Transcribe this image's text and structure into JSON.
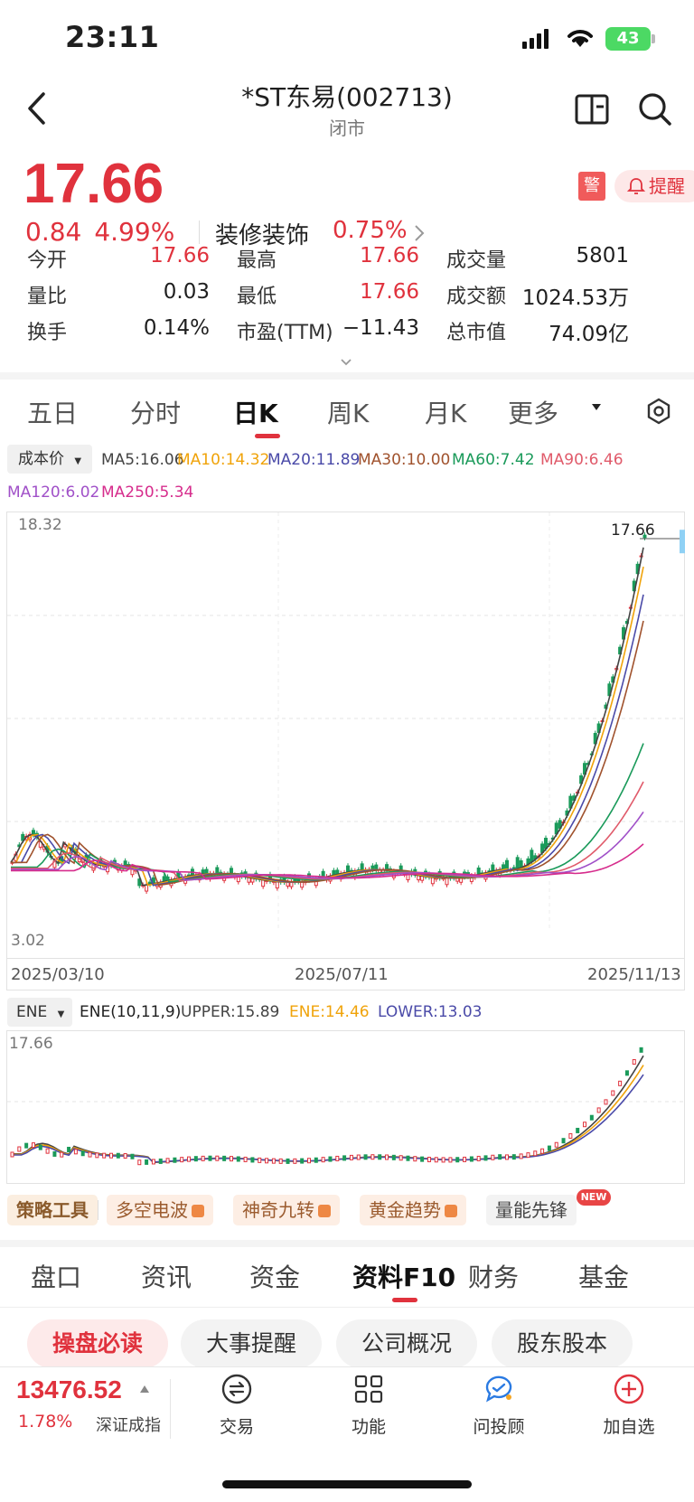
{
  "status_bar": {
    "time": "23:11",
    "battery": "43"
  },
  "header": {
    "title": "*ST东易(002713)",
    "subtitle": "闭市",
    "back_icon": "chevron-left-icon",
    "book_icon": "book-icon",
    "search_icon": "search-icon"
  },
  "quote": {
    "price": "17.66",
    "change": "0.84",
    "change_pct": "4.99%",
    "sector": "装修装饰",
    "sector_pct": "0.75%",
    "warn_label": "警",
    "remind_label": "提醒",
    "stats": [
      [
        {
          "label": "今开",
          "value": "17.66",
          "red": true
        },
        {
          "label": "最高",
          "value": "17.66",
          "red": true
        },
        {
          "label": "成交量",
          "value": "5801",
          "red": false
        }
      ],
      [
        {
          "label": "量比",
          "value": "0.03",
          "red": false
        },
        {
          "label": "最低",
          "value": "17.66",
          "red": true
        },
        {
          "label": "成交额",
          "value": "1024.53万",
          "red": false
        }
      ],
      [
        {
          "label": "换手",
          "value": "0.14%",
          "red": false
        },
        {
          "label": "市盈(TTM)",
          "value": "−11.43",
          "red": false
        },
        {
          "label": "总市值",
          "value": "74.09亿",
          "red": false
        }
      ]
    ]
  },
  "chart_tabs": [
    "五日",
    "分时",
    "日K",
    "周K",
    "月K",
    "更多"
  ],
  "active_chart_tab": "日K",
  "ma_legend": {
    "cost_label": "成本价",
    "row1": [
      {
        "text": "MA5:16.06",
        "color": "#444444"
      },
      {
        "text": "MA10:14.32",
        "color": "#f0a30a"
      },
      {
        "text": "MA20:11.89",
        "color": "#4a4aa8"
      },
      {
        "text": "MA30:10.00",
        "color": "#a0522d"
      },
      {
        "text": "MA60:7.42",
        "color": "#1a9a5a"
      },
      {
        "text": "MA90:6.46",
        "color": "#e05a6a"
      }
    ],
    "row2": [
      {
        "text": "MA120:6.02",
        "color": "#a050c8"
      },
      {
        "text": "MA250:5.34",
        "color": "#d62c8c"
      }
    ]
  },
  "main_chart": {
    "y_max_label": "18.32",
    "y_min_label": "3.02",
    "last_price_label": "17.66",
    "dates": [
      "2025/03/10",
      "2025/07/11",
      "2025/11/13"
    ]
  },
  "ene": {
    "selector": "ENE",
    "params": {
      "text": "ENE(10,11,9)",
      "color": "#333333"
    },
    "upper": {
      "text": "UPPER:15.89",
      "color": "#444444"
    },
    "mid": {
      "text": "ENE:14.46",
      "color": "#f0a30a"
    },
    "lower": {
      "text": "LOWER:13.03",
      "color": "#4a4aa8"
    },
    "y_max_label": "17.66"
  },
  "tools": {
    "strategy": "策略工具",
    "items": [
      "多空电波",
      "神奇九转",
      "黄金趋势"
    ],
    "volume": "量能先锋",
    "new_badge": "NEW"
  },
  "info_tabs": [
    "盘口",
    "资讯",
    "资金",
    "资料F10",
    "财务",
    "基金"
  ],
  "active_info_tab": "资料F10",
  "pills": [
    "操盘必读",
    "大事提醒",
    "公司概况",
    "股东股本"
  ],
  "bottom": {
    "index_value": "13476.52",
    "index_change": "1.78%",
    "index_name": "深证成指",
    "nav": [
      {
        "label": "交易",
        "icon": "trade-icon"
      },
      {
        "label": "功能",
        "icon": "grid-icon"
      },
      {
        "label": "问投顾",
        "icon": "chat-icon"
      },
      {
        "label": "加自选",
        "icon": "add-watchlist-icon"
      }
    ]
  }
}
